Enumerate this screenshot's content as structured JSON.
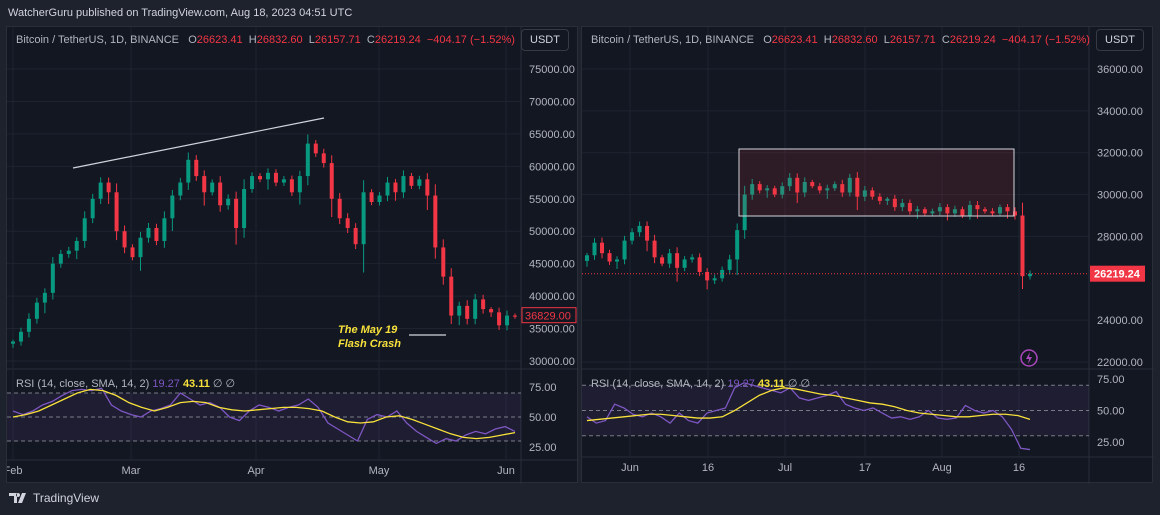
{
  "header": {
    "published": "WatcherGuru published on TradingView.com, Aug 18, 2023 04:51 UTC"
  },
  "legend": {
    "symbol": "Bitcoin / TetherUS, 1D, BINANCE",
    "o_label": "O",
    "o": "26623.41",
    "h_label": "H",
    "h": "26832.60",
    "l_label": "L",
    "l": "26157.71",
    "c_label": "C",
    "c": "26219.24",
    "change": "−404.17 (−1.52%)"
  },
  "currency_button": "USDT",
  "rsi_legend": {
    "label": "RSI (14, close, SMA, 14, 2)",
    "rsi": "19.27",
    "sma": "43.11",
    "extra": "∅ ∅"
  },
  "footer": {
    "brand": "TradingView"
  },
  "colors": {
    "up": "#089981",
    "down": "#f23645",
    "rsi": "#7e57c2",
    "rsi_sma": "#f7e13b",
    "annotation": "#f7e13b"
  },
  "chart_data": [
    {
      "type": "candlestick",
      "panel": "left",
      "y_ticks": [
        "75000.00",
        "70000.00",
        "65000.00",
        "60000.00",
        "55000.00",
        "50000.00",
        "45000.00",
        "40000.00",
        "35000.00",
        "30000.00"
      ],
      "ylim": [
        30000,
        75000
      ],
      "x_ticks": [
        "Feb",
        "Mar",
        "Apr",
        "May",
        "Jun"
      ],
      "closes": [
        33000,
        34500,
        36500,
        39000,
        40500,
        45000,
        46500,
        47000,
        48500,
        52000,
        55000,
        57500,
        56000,
        50000,
        47500,
        46000,
        49000,
        50500,
        48500,
        52000,
        55500,
        57500,
        61000,
        58500,
        56000,
        57500,
        54000,
        55000,
        50500,
        56500,
        58500,
        58000,
        59000,
        57500,
        58000,
        56000,
        58500,
        63500,
        62000,
        60500,
        55000,
        52000,
        50500,
        48000,
        56000,
        54500,
        55500,
        57500,
        56000,
        58500,
        57000,
        58000,
        55500,
        47500,
        43000,
        37000,
        38500,
        36500,
        39500,
        38000,
        37500,
        35500,
        37000,
        36829
      ],
      "price_label": "36829.00",
      "annotation": "The May 19\nFlash Crash",
      "rsi_ticks": [
        "75.00",
        "50.00",
        "25.00"
      ],
      "rsi": [
        55,
        52,
        55,
        60,
        63,
        68,
        72,
        73,
        72,
        74,
        60,
        55,
        52,
        50,
        55,
        57,
        60,
        70,
        65,
        60,
        62,
        58,
        50,
        47,
        55,
        60,
        58,
        55,
        58,
        60,
        65,
        58,
        45,
        40,
        35,
        30,
        48,
        52,
        50,
        55,
        45,
        38,
        33,
        28,
        32,
        30,
        35,
        38,
        36,
        40,
        42,
        38
      ],
      "rsi_sma": [
        50,
        52,
        55,
        60,
        65,
        70,
        73,
        72,
        68,
        62,
        58,
        55,
        58,
        62,
        63,
        62,
        58,
        56,
        55,
        56,
        57,
        58,
        58,
        57,
        55,
        50,
        46,
        45,
        46,
        50,
        51,
        48,
        44,
        40,
        36,
        33,
        32,
        33,
        35,
        37
      ]
    },
    {
      "type": "candlestick",
      "panel": "right",
      "y_ticks": [
        "36000.00",
        "34000.00",
        "32000.00",
        "30000.00",
        "28000.00",
        "24000.00",
        "22000.00"
      ],
      "ylim": [
        22000,
        36000
      ],
      "x_ticks": [
        "Jun",
        "16",
        "Jul",
        "17",
        "Aug",
        "16"
      ],
      "closes": [
        27100,
        27700,
        27200,
        26800,
        26900,
        27800,
        28200,
        28500,
        27800,
        27000,
        26700,
        27200,
        26500,
        26900,
        27000,
        26300,
        25900,
        26000,
        26400,
        26900,
        28300,
        30000,
        30500,
        30200,
        30300,
        30000,
        30400,
        30800,
        30100,
        30600,
        30400,
        30200,
        30300,
        30500,
        30100,
        30800,
        29900,
        30200,
        29900,
        29700,
        29800,
        29400,
        29600,
        29200,
        29300,
        29100,
        29200,
        29400,
        29100,
        29300,
        29000,
        29500,
        29300,
        29200,
        29100,
        29400,
        29200,
        29000,
        26100,
        26219
      ],
      "price_label": "26219.24",
      "rsi_ticks": [
        "75.00",
        "50.00",
        "25.00"
      ],
      "rsi": [
        45,
        40,
        42,
        55,
        52,
        47,
        45,
        48,
        45,
        40,
        48,
        42,
        40,
        48,
        50,
        52,
        68,
        72,
        70,
        68,
        66,
        64,
        68,
        60,
        58,
        60,
        62,
        65,
        55,
        52,
        50,
        52,
        48,
        44,
        45,
        43,
        45,
        50,
        44,
        43,
        44,
        54,
        50,
        48,
        50,
        45,
        35,
        20,
        19
      ],
      "rsi_sma": [
        42,
        43,
        44,
        45,
        46,
        47,
        47,
        46,
        45,
        44,
        44,
        45,
        50,
        56,
        62,
        66,
        68,
        67,
        65,
        63,
        62,
        60,
        58,
        56,
        55,
        53,
        50,
        48,
        47,
        46,
        45,
        45,
        46,
        47,
        47,
        46,
        43
      ]
    }
  ]
}
